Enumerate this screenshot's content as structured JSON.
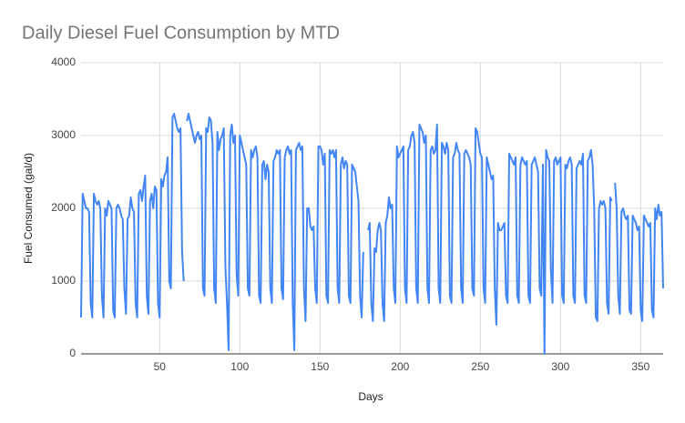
{
  "chart_data": {
    "type": "line",
    "title": "Daily Diesel Fuel Consumption by MTD",
    "x_label": "Days",
    "y_label": "Fuel Consumed (gal/d)",
    "xlim": [
      1,
      364
    ],
    "xticks": [
      50,
      100,
      150,
      200,
      250,
      300,
      350
    ],
    "ylim": [
      0,
      4000
    ],
    "yticks": [
      0,
      1000,
      2000,
      3000,
      4000
    ],
    "grid": true,
    "x": [
      1,
      2,
      3,
      4,
      5,
      6,
      7,
      8,
      9,
      10,
      11,
      12,
      13,
      14,
      15,
      16,
      17,
      18,
      19,
      20,
      21,
      22,
      23,
      24,
      25,
      26,
      27,
      28,
      29,
      30,
      31,
      32,
      33,
      34,
      35,
      36,
      37,
      38,
      39,
      40,
      41,
      42,
      43,
      44,
      45,
      46,
      47,
      48,
      49,
      50,
      51,
      52,
      53,
      54,
      55,
      56,
      57,
      58,
      59,
      60,
      61,
      62,
      63,
      64,
      65,
      66,
      67,
      68,
      69,
      70,
      71,
      72,
      73,
      74,
      75,
      76,
      77,
      78,
      79,
      80,
      81,
      82,
      83,
      84,
      85,
      86,
      87,
      88,
      89,
      90,
      91,
      92,
      93,
      94,
      95,
      96,
      97,
      98,
      99,
      100,
      101,
      102,
      103,
      104,
      105,
      106,
      107,
      108,
      109,
      110,
      111,
      112,
      113,
      114,
      115,
      116,
      117,
      118,
      119,
      120,
      121,
      122,
      123,
      124,
      125,
      126,
      127,
      128,
      129,
      130,
      131,
      132,
      133,
      134,
      135,
      136,
      137,
      138,
      139,
      140,
      141,
      142,
      143,
      144,
      145,
      146,
      147,
      148,
      149,
      150,
      151,
      152,
      153,
      154,
      155,
      156,
      157,
      158,
      159,
      160,
      161,
      162,
      163,
      164,
      165,
      166,
      167,
      168,
      169,
      170,
      171,
      172,
      173,
      174,
      175,
      176,
      177,
      178,
      179,
      180,
      181,
      182,
      183,
      184,
      185,
      186,
      187,
      188,
      189,
      190,
      191,
      192,
      193,
      194,
      195,
      196,
      197,
      198,
      199,
      200,
      201,
      202,
      203,
      204,
      205,
      206,
      207,
      208,
      209,
      210,
      211,
      212,
      213,
      214,
      215,
      216,
      217,
      218,
      219,
      220,
      221,
      222,
      223,
      224,
      225,
      226,
      227,
      228,
      229,
      230,
      231,
      232,
      233,
      234,
      235,
      236,
      237,
      238,
      239,
      240,
      241,
      242,
      243,
      244,
      245,
      246,
      247,
      248,
      249,
      250,
      251,
      252,
      253,
      254,
      255,
      256,
      257,
      258,
      259,
      260,
      261,
      262,
      263,
      264,
      265,
      266,
      267,
      268,
      269,
      270,
      271,
      272,
      273,
      274,
      275,
      276,
      277,
      278,
      279,
      280,
      281,
      282,
      283,
      284,
      285,
      286,
      287,
      288,
      289,
      290,
      291,
      292,
      293,
      294,
      295,
      296,
      297,
      298,
      299,
      300,
      301,
      302,
      303,
      304,
      305,
      306,
      307,
      308,
      309,
      310,
      311,
      312,
      313,
      314,
      315,
      316,
      317,
      318,
      319,
      320,
      321,
      322,
      323,
      324,
      325,
      326,
      327,
      328,
      329,
      330,
      331,
      332,
      333,
      334,
      335,
      336,
      337,
      338,
      339,
      340,
      341,
      342,
      343,
      344,
      345,
      346,
      347,
      348,
      349,
      350,
      351,
      352,
      353,
      354,
      355,
      356,
      357,
      358,
      359,
      360,
      361,
      362,
      363,
      364
    ],
    "series": [
      {
        "name": "Fuel Consumed (gal/d)",
        "color": "#4285f4",
        "values": [
          500,
          2200,
          2100,
          2000,
          2000,
          1950,
          700,
          500,
          2200,
          2100,
          2050,
          2100,
          2000,
          800,
          500,
          2000,
          1900,
          2100,
          2050,
          2000,
          600,
          500,
          2000,
          2050,
          2000,
          1900,
          1850,
          900,
          550,
          1850,
          1900,
          2150,
          2000,
          1950,
          700,
          500,
          2200,
          2250,
          2100,
          2300,
          2450,
          800,
          550,
          2100,
          2200,
          2000,
          2300,
          2250,
          700,
          500,
          2400,
          2300,
          2450,
          2500,
          2700,
          1000,
          900,
          3250,
          3300,
          3200,
          3100,
          3050,
          3100,
          1400,
          1000,
          null,
          3200,
          3300,
          3200,
          3100,
          3000,
          2900,
          3000,
          3050,
          2950,
          3000,
          900,
          800,
          3100,
          3050,
          3250,
          3200,
          2900,
          900,
          700,
          3050,
          2800,
          2950,
          3000,
          3100,
          1200,
          700,
          50,
          3000,
          3150,
          2900,
          3000,
          1100,
          800,
          3000,
          2900,
          2800,
          2700,
          2600,
          900,
          800,
          2800,
          2700,
          2800,
          2850,
          2700,
          800,
          700,
          2600,
          2650,
          2400,
          2600,
          2500,
          900,
          700,
          2650,
          2700,
          2800,
          2750,
          2800,
          900,
          750,
          2700,
          2800,
          2850,
          2750,
          2800,
          700,
          50,
          2800,
          2850,
          2900,
          2800,
          2850,
          900,
          450,
          2000,
          2000,
          1750,
          1700,
          1750,
          900,
          700,
          2850,
          2850,
          2800,
          2600,
          2750,
          800,
          700,
          2800,
          2750,
          2800,
          2700,
          2800,
          900,
          700,
          2600,
          2700,
          2550,
          2650,
          2600,
          800,
          700,
          2600,
          2550,
          2500,
          2300,
          2100,
          800,
          500,
          1400,
          null,
          null,
          1700,
          1800,
          700,
          450,
          1450,
          1400,
          1700,
          1800,
          1700,
          700,
          450,
          1800,
          1900,
          2150,
          2000,
          2050,
          900,
          700,
          2850,
          2700,
          2750,
          2800,
          2850,
          900,
          700,
          2800,
          2850,
          3000,
          3050,
          2900,
          900,
          700,
          3150,
          3100,
          3050,
          2900,
          3000,
          900,
          700,
          2800,
          2850,
          2750,
          2800,
          3150,
          900,
          700,
          2900,
          2850,
          2750,
          2900,
          2800,
          800,
          700,
          2700,
          2750,
          2900,
          2800,
          2750,
          900,
          700,
          2750,
          2800,
          2750,
          2700,
          2600,
          900,
          800,
          3100,
          3050,
          2900,
          2750,
          2700,
          900,
          700,
          2700,
          2600,
          2500,
          2400,
          2450,
          900,
          400,
          1800,
          1700,
          1700,
          1750,
          1800,
          800,
          700,
          2750,
          2700,
          2650,
          2600,
          2700,
          800,
          700,
          2600,
          2700,
          2650,
          2600,
          2650,
          800,
          700,
          2600,
          2650,
          2700,
          2600,
          2500,
          900,
          800,
          2600,
          0,
          2800,
          2700,
          2650,
          1150,
          700,
          2650,
          2700,
          2600,
          2650,
          2700,
          800,
          700,
          2600,
          2550,
          2650,
          2700,
          2600,
          800,
          700,
          2550,
          2600,
          2650,
          2600,
          2750,
          800,
          700,
          2650,
          2700,
          2800,
          2600,
          2000,
          500,
          450,
          2000,
          2100,
          2050,
          2100,
          2000,
          700,
          550,
          2150,
          2100,
          null,
          2350,
          2000,
          800,
          550,
          1950,
          2000,
          1900,
          1850,
          1900,
          600,
          550,
          1900,
          1850,
          1800,
          1700,
          1750,
          600,
          450,
          1900,
          1850,
          1800,
          1750,
          1800,
          600,
          500,
          2000,
          1850,
          2050,
          1900,
          1950,
          900
        ]
      }
    ]
  }
}
